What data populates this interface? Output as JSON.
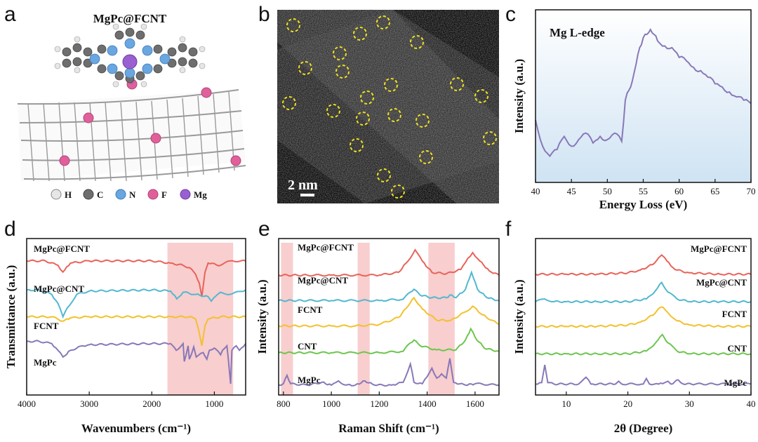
{
  "panels": {
    "a": "a",
    "b": "b",
    "c": "c",
    "d": "d",
    "e": "e",
    "f": "f"
  },
  "panel_a": {
    "title": "MgPc@FCNT",
    "legend": [
      {
        "label": "H",
        "color": "#e6e6e6"
      },
      {
        "label": "C",
        "color": "#6e6e6e"
      },
      {
        "label": "N",
        "color": "#6aa6e0"
      },
      {
        "label": "F",
        "color": "#e0609a"
      },
      {
        "label": "Mg",
        "color": "#9a5fd0"
      }
    ]
  },
  "panel_b": {
    "scale_bar": "2 nm"
  },
  "colors": {
    "red": "#e8635a",
    "cyan": "#52b8d0",
    "yellow": "#f2c12e",
    "green": "#6cc64e",
    "purple": "#8878b8",
    "highlight": "#f7c5c5"
  },
  "chart_data": [
    {
      "id": "c",
      "type": "line",
      "title": "Mg L-edge",
      "xlabel": "Energy Loss (eV)",
      "ylabel": "Intensity (a.u.)",
      "xlim": [
        40,
        70
      ],
      "ylim": [
        0,
        1
      ],
      "xticks": [
        "40",
        "45",
        "50",
        "55",
        "60",
        "65",
        "70"
      ],
      "series": [
        {
          "name": "Mg L-edge",
          "x": [
            40,
            41,
            42,
            43,
            44,
            45,
            46,
            47,
            48,
            49,
            50,
            51,
            52,
            52.5,
            53,
            53.5,
            54,
            54.5,
            55,
            55.5,
            56,
            56.5,
            57,
            58,
            59,
            60,
            61,
            62,
            63,
            64,
            65,
            66,
            67,
            68,
            69,
            70
          ],
          "y": [
            0.38,
            0.22,
            0.16,
            0.2,
            0.28,
            0.22,
            0.26,
            0.3,
            0.24,
            0.28,
            0.26,
            0.3,
            0.25,
            0.5,
            0.56,
            0.62,
            0.72,
            0.82,
            0.88,
            0.9,
            0.93,
            0.9,
            0.86,
            0.83,
            0.82,
            0.76,
            0.74,
            0.7,
            0.68,
            0.64,
            0.6,
            0.58,
            0.55,
            0.52,
            0.5,
            0.48
          ]
        }
      ]
    },
    {
      "id": "d",
      "type": "line",
      "xlabel": "Wavenumbers (cm⁻¹)",
      "ylabel": "Transmittance (a.u.)",
      "xlim": [
        4000,
        500
      ],
      "xticks": [
        "4000",
        "3000",
        "2000",
        "1000"
      ],
      "highlight": [
        [
          1750,
          700
        ]
      ],
      "series": [
        {
          "name": "MgPc@FCNT",
          "x": [
            4000,
            3700,
            3500,
            3420,
            3300,
            3000,
            2500,
            2000,
            1700,
            1500,
            1400,
            1300,
            1240,
            1200,
            1150,
            1100,
            900,
            750,
            500
          ],
          "y": [
            0.92,
            0.92,
            0.88,
            0.82,
            0.9,
            0.92,
            0.92,
            0.92,
            0.9,
            0.88,
            0.86,
            0.8,
            0.72,
            0.6,
            0.82,
            0.9,
            0.88,
            0.92,
            0.92
          ]
        },
        {
          "name": "MgPc@CNT",
          "x": [
            4000,
            3800,
            3600,
            3500,
            3420,
            3350,
            3200,
            3000,
            2000,
            1700,
            1600,
            1500,
            1300,
            1100,
            1050,
            900,
            750,
            500
          ],
          "y": [
            0.66,
            0.66,
            0.62,
            0.54,
            0.42,
            0.5,
            0.62,
            0.65,
            0.66,
            0.65,
            0.58,
            0.64,
            0.62,
            0.6,
            0.56,
            0.64,
            0.62,
            0.66
          ]
        },
        {
          "name": "FCNT",
          "x": [
            4000,
            3600,
            3420,
            3300,
            3000,
            2000,
            1700,
            1400,
            1300,
            1250,
            1200,
            1150,
            1100,
            900,
            500
          ],
          "y": [
            0.42,
            0.42,
            0.38,
            0.41,
            0.42,
            0.42,
            0.42,
            0.42,
            0.4,
            0.3,
            0.16,
            0.34,
            0.4,
            0.42,
            0.42
          ]
        },
        {
          "name": "MgPc",
          "x": [
            4000,
            3800,
            3600,
            3500,
            3420,
            3300,
            3100,
            3000,
            2000,
            1700,
            1610,
            1500,
            1480,
            1420,
            1400,
            1330,
            1290,
            1180,
            1120,
            1080,
            1000,
            900,
            870,
            800,
            780,
            740,
            720,
            650,
            600,
            500
          ],
          "y": [
            0.2,
            0.2,
            0.18,
            0.12,
            0.06,
            0.12,
            0.16,
            0.17,
            0.18,
            0.18,
            0.12,
            0.18,
            0.02,
            0.16,
            0.04,
            0.15,
            0.06,
            0.1,
            0.04,
            0.12,
            0.14,
            0.08,
            0.12,
            0.16,
            0.06,
            -0.18,
            0.12,
            0.16,
            0.12,
            0.18
          ]
        }
      ]
    },
    {
      "id": "e",
      "type": "line",
      "xlabel": "Raman Shift (cm⁻¹)",
      "ylabel": "Intensity (a.u.)",
      "xlim": [
        780,
        1700
      ],
      "xticks": [
        "800",
        "1000",
        "1200",
        "1400",
        "1600"
      ],
      "highlight": [
        [
          790,
          840
        ],
        [
          1110,
          1160
        ],
        [
          1405,
          1515
        ]
      ],
      "series": [
        {
          "name": "MgPc@FCNT",
          "x": [
            780,
            900,
            1000,
            1100,
            1200,
            1280,
            1320,
            1350,
            1380,
            1420,
            1480,
            1540,
            1570,
            1590,
            1620,
            1660,
            1700
          ],
          "y": [
            0.9,
            0.9,
            0.9,
            0.9,
            0.9,
            0.92,
            1.0,
            1.08,
            1.0,
            0.92,
            0.91,
            0.94,
            1.02,
            1.06,
            1.0,
            0.93,
            0.9
          ]
        },
        {
          "name": "MgPc@CNT",
          "x": [
            780,
            900,
            1000,
            1100,
            1200,
            1300,
            1330,
            1345,
            1370,
            1420,
            1480,
            1495,
            1520,
            1560,
            1585,
            1610,
            1650,
            1700
          ],
          "y": [
            0.72,
            0.72,
            0.72,
            0.72,
            0.72,
            0.73,
            0.78,
            0.8,
            0.76,
            0.74,
            0.74,
            0.76,
            0.74,
            0.8,
            0.92,
            0.8,
            0.74,
            0.72
          ]
        },
        {
          "name": "FCNT",
          "x": [
            780,
            900,
            1000,
            1100,
            1200,
            1280,
            1320,
            1345,
            1380,
            1440,
            1500,
            1560,
            1590,
            1630,
            1700
          ],
          "y": [
            0.54,
            0.54,
            0.54,
            0.54,
            0.55,
            0.6,
            0.68,
            0.74,
            0.66,
            0.58,
            0.58,
            0.64,
            0.68,
            0.62,
            0.55
          ]
        },
        {
          "name": "CNT",
          "x": [
            780,
            900,
            1000,
            1100,
            1200,
            1300,
            1330,
            1345,
            1370,
            1440,
            1520,
            1560,
            1582,
            1600,
            1640,
            1700
          ],
          "y": [
            0.35,
            0.35,
            0.35,
            0.35,
            0.35,
            0.36,
            0.42,
            0.44,
            0.4,
            0.37,
            0.37,
            0.44,
            0.52,
            0.46,
            0.38,
            0.36
          ]
        },
        {
          "name": "MgPc",
          "x": [
            780,
            800,
            815,
            830,
            900,
            960,
            1000,
            1030,
            1060,
            1100,
            1140,
            1180,
            1250,
            1300,
            1330,
            1345,
            1380,
            1400,
            1420,
            1440,
            1460,
            1480,
            1495,
            1510,
            1560,
            1600,
            1700
          ],
          "y": [
            0.12,
            0.13,
            0.19,
            0.13,
            0.12,
            0.14,
            0.12,
            0.15,
            0.12,
            0.12,
            0.15,
            0.12,
            0.12,
            0.14,
            0.27,
            0.14,
            0.13,
            0.18,
            0.24,
            0.17,
            0.2,
            0.17,
            0.31,
            0.14,
            0.12,
            0.13,
            0.12
          ]
        }
      ]
    },
    {
      "id": "f",
      "type": "line",
      "xlabel": "2θ (Degree)",
      "ylabel": "Intensity (a.u.)",
      "xlim": [
        5,
        40
      ],
      "xticks": [
        "10",
        "20",
        "30",
        "40"
      ],
      "series": [
        {
          "name": "MgPc@FCNT",
          "x": [
            5,
            10,
            15,
            20,
            22,
            24,
            25,
            25.5,
            26,
            27,
            28,
            30,
            35,
            40
          ],
          "y": [
            0.9,
            0.9,
            0.9,
            0.91,
            0.93,
            0.97,
            1.02,
            1.04,
            1.02,
            0.96,
            0.93,
            0.91,
            0.9,
            0.9
          ]
        },
        {
          "name": "MgPc@CNT",
          "x": [
            5,
            6.5,
            8,
            10,
            15,
            20,
            23,
            24.5,
            25.5,
            26.5,
            28,
            30,
            35,
            40
          ],
          "y": [
            0.7,
            0.72,
            0.7,
            0.7,
            0.7,
            0.7,
            0.72,
            0.78,
            0.84,
            0.77,
            0.72,
            0.7,
            0.7,
            0.7
          ]
        },
        {
          "name": "FCNT",
          "x": [
            5,
            10,
            15,
            20,
            22,
            24,
            25,
            25.7,
            26.5,
            28,
            30,
            35,
            40
          ],
          "y": [
            0.52,
            0.52,
            0.52,
            0.53,
            0.55,
            0.6,
            0.65,
            0.66,
            0.62,
            0.56,
            0.53,
            0.52,
            0.52
          ]
        },
        {
          "name": "CNT",
          "x": [
            5,
            10,
            15,
            20,
            23,
            24.5,
            25.6,
            26.5,
            28,
            30,
            35,
            40
          ],
          "y": [
            0.32,
            0.32,
            0.32,
            0.32,
            0.34,
            0.4,
            0.46,
            0.4,
            0.34,
            0.32,
            0.32,
            0.32
          ]
        },
        {
          "name": "MgPc",
          "x": [
            5,
            6,
            6.5,
            7,
            8,
            12,
            12.5,
            13.2,
            14,
            18,
            18.5,
            19,
            20,
            22.5,
            23,
            23.5,
            25,
            26,
            26.5,
            27,
            28.2,
            29,
            31,
            40
          ],
          "y": [
            0.1,
            0.11,
            0.24,
            0.11,
            0.1,
            0.1,
            0.12,
            0.15,
            0.1,
            0.1,
            0.12,
            0.1,
            0.1,
            0.1,
            0.14,
            0.1,
            0.1,
            0.11,
            0.12,
            0.1,
            0.13,
            0.1,
            0.1,
            0.1
          ]
        }
      ]
    }
  ]
}
